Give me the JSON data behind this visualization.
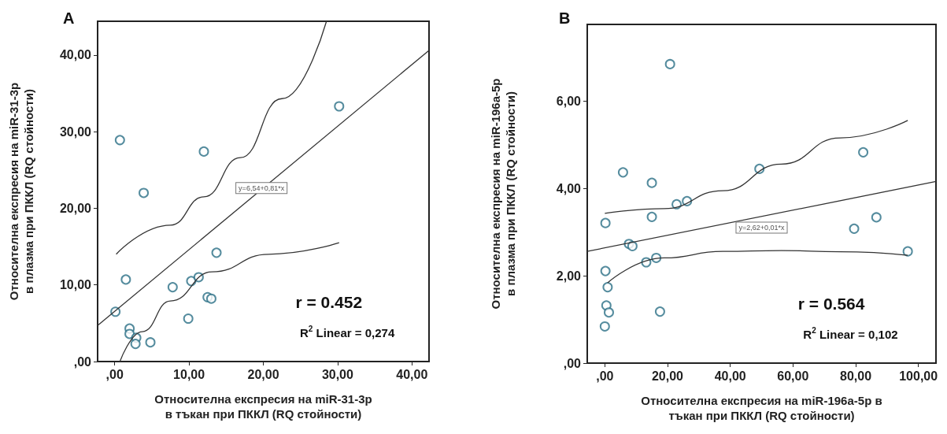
{
  "chart_data": [
    {
      "type": "scatter",
      "title": "A",
      "xlabel": "Относителна експресия на miR-31-3p\nв тъкан при ПККЛ (RQ стойности)",
      "ylabel": "Относителна експресия на miR-31-3p\nв плазма при ПККЛ (RQ стойности)",
      "xlim": [
        -2.3,
        42.3
      ],
      "ylim": [
        0,
        44.4
      ],
      "xticks": [
        {
          "value": 0,
          "label": ",00"
        },
        {
          "value": 10,
          "label": "10,00"
        },
        {
          "value": 20,
          "label": "20,00"
        },
        {
          "value": 30,
          "label": "30,00"
        },
        {
          "value": 40,
          "label": "40,00"
        }
      ],
      "yticks": [
        {
          "value": 0,
          "label": ",00"
        },
        {
          "value": 10,
          "label": "10,00"
        },
        {
          "value": 20,
          "label": "20,00"
        },
        {
          "value": 30,
          "label": "30,00"
        },
        {
          "value": 40,
          "label": "40,00"
        }
      ],
      "grid": false,
      "marker": "circle",
      "series": [
        {
          "color": "#2b6f86",
          "x": [
            0.7,
            12.0,
            3.9,
            30.2,
            13.7,
            1.5,
            7.8,
            10.3,
            11.3,
            12.5,
            13.0,
            9.9,
            0.1,
            2.0,
            2.0,
            2.9,
            2.8,
            4.8
          ],
          "values": [
            28.9,
            27.4,
            22.0,
            33.3,
            14.2,
            10.7,
            9.7,
            10.5,
            11.0,
            8.4,
            8.2,
            5.6,
            6.5,
            4.3,
            3.6,
            3.1,
            2.3,
            2.5
          ]
        },
        {
          "type": "line",
          "marker": "none",
          "color": "#333333",
          "x": [
            -2.3,
            42.3
          ],
          "values": [
            4.7,
            40.6
          ]
        },
        {
          "type": "line",
          "marker": "none",
          "color": "#333333",
          "x": [
            0.2,
            7.5,
            12.0,
            16.9,
            22.5,
            28.5
          ],
          "values": [
            14.0,
            17.8,
            21.5,
            26.6,
            34.3,
            44.4
          ]
        },
        {
          "type": "line",
          "marker": "none",
          "color": "#333333",
          "x": [
            0.7,
            3.7,
            7.5,
            13.1,
            20.7,
            30.2
          ],
          "values": [
            0,
            3.9,
            7.9,
            11.7,
            14.0,
            15.5
          ]
        }
      ],
      "annotations": [
        "r = 0.452",
        "R$^{2}$ Linear = 0,274",
        "y=6,54+0,81*x"
      ]
    },
    {
      "type": "scatter",
      "title": "B",
      "xlabel": "Относителна експресия на miR-196a-5p в\nтъкан при ПККЛ (RQ стойности)",
      "ylabel": "Относителна експресия на miR-196a-5p\nв плазма при ПККЛ (RQ стойности)",
      "xlim": [
        -5.6,
        105.6
      ],
      "ylim": [
        0,
        7.76
      ],
      "xticks": [
        {
          "value": 0,
          "label": ",00"
        },
        {
          "value": 20,
          "label": "20,00"
        },
        {
          "value": 40,
          "label": "40,00"
        },
        {
          "value": 60,
          "label": "60,00"
        },
        {
          "value": 80,
          "label": "80,00"
        },
        {
          "value": 100,
          "label": "100,00"
        }
      ],
      "yticks": [
        {
          "value": 0,
          "label": ",00"
        },
        {
          "value": 2,
          "label": "2,00"
        },
        {
          "value": 4,
          "label": "4,00"
        },
        {
          "value": 6,
          "label": "6,00"
        }
      ],
      "grid": false,
      "marker": "circle",
      "series": [
        {
          "color": "#2b6f86",
          "x": [
            20.8,
            5.8,
            15.0,
            49.3,
            82.4,
            22.9,
            26.2,
            15.0,
            0.2,
            86.6,
            79.5,
            7.7,
            8.8,
            96.6,
            13.2,
            16.4,
            0.2,
            0.9,
            0.5,
            1.3,
            17.6,
            0.0
          ],
          "values": [
            6.85,
            4.37,
            4.13,
            4.45,
            4.83,
            3.64,
            3.71,
            3.35,
            3.21,
            3.34,
            3.08,
            2.73,
            2.68,
            2.56,
            2.31,
            2.41,
            2.11,
            1.74,
            1.32,
            1.16,
            1.18,
            0.84
          ]
        },
        {
          "type": "line",
          "marker": "none",
          "color": "#333333",
          "x": [
            -5.6,
            105.6
          ],
          "values": [
            2.56,
            4.16
          ]
        },
        {
          "type": "line",
          "marker": "none",
          "color": "#333333",
          "x": [
            0,
            18.9,
            37.6,
            56.3,
            75,
            96.6
          ],
          "values": [
            3.43,
            3.54,
            3.95,
            4.56,
            5.16,
            5.56
          ]
        },
        {
          "type": "line",
          "marker": "none",
          "color": "#333333",
          "x": [
            0.9,
            18.9,
            37.6,
            56.3,
            75,
            96.6
          ],
          "values": [
            1.84,
            2.41,
            2.56,
            2.58,
            2.55,
            2.47
          ]
        }
      ],
      "annotations": [
        "r = 0.564",
        "R$^{2}$ Linear = 0,102",
        "y=2,62+0,01*x"
      ]
    }
  ]
}
